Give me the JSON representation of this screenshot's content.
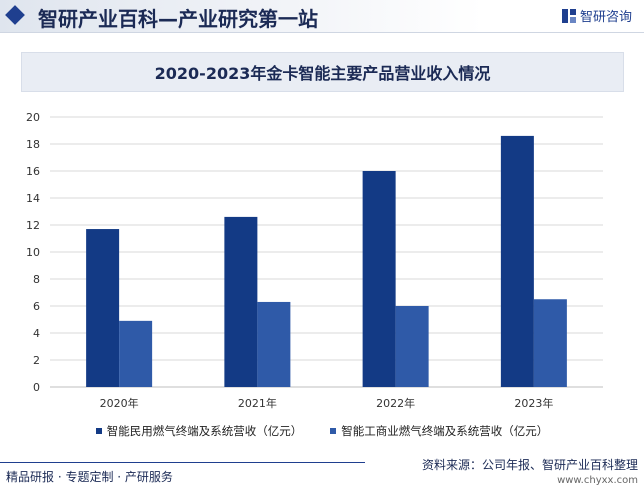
{
  "header": {
    "title": "智研产业百科—产业研究第一站",
    "logo_text": "智研咨询"
  },
  "footer": {
    "left": "精品研报 · 专题定制 · 产研服务",
    "source": "资料来源：公司年报、智研产业百科整理",
    "url": "www.chyxx.com"
  },
  "colors": {
    "series1": "#133a85",
    "series2": "#2f5aa8",
    "accent": "#1f3f8f"
  },
  "chart_data": {
    "type": "bar",
    "title": "2020-2023年金卡智能主要产品营业收入情况",
    "categories": [
      "2020年",
      "2021年",
      "2022年",
      "2023年"
    ],
    "series": [
      {
        "name": "智能民用燃气终端及系统营收（亿元）",
        "values": [
          11.7,
          12.6,
          16.0,
          18.6
        ]
      },
      {
        "name": "智能工商业燃气终端及系统营收（亿元）",
        "values": [
          4.9,
          6.3,
          6.0,
          6.5
        ]
      }
    ],
    "ylim": [
      0,
      20
    ],
    "yticks": [
      0,
      2,
      4,
      6,
      8,
      10,
      12,
      14,
      16,
      18,
      20
    ],
    "grid": true,
    "legend": "bottom"
  }
}
